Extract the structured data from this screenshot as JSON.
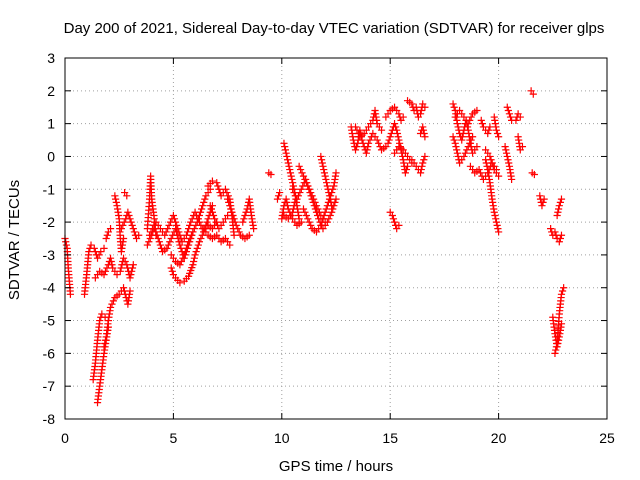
{
  "chart_data": {
    "type": "scatter",
    "title": "Day 200 of 2021, Sidereal Day-to-day VTEC variation (SDTVAR) for receiver glps",
    "xlabel": "GPS time / hours",
    "ylabel": "SDTVAR / TECUs",
    "xlim": [
      0,
      25
    ],
    "ylim": [
      -8,
      3
    ],
    "xticks": [
      0,
      5,
      10,
      15,
      20,
      25
    ],
    "yticks": [
      -8,
      -7,
      -6,
      -5,
      -4,
      -3,
      -2,
      -1,
      0,
      1,
      2,
      3
    ],
    "grid": true,
    "marker": "plus",
    "color": "#ff0000",
    "segments": [
      [
        [
          0.0,
          -2.5
        ],
        [
          0.1,
          -2.8
        ],
        [
          0.15,
          -3.4
        ],
        [
          0.2,
          -3.8
        ],
        [
          0.25,
          -4.2
        ]
      ],
      [
        [
          0.9,
          -4.2
        ],
        [
          1.0,
          -3.6
        ],
        [
          1.1,
          -2.9
        ],
        [
          1.2,
          -2.7
        ],
        [
          1.35,
          -2.8
        ],
        [
          1.5,
          -3.1
        ],
        [
          1.65,
          -2.9
        ],
        [
          1.8,
          -2.8
        ]
      ],
      [
        [
          1.3,
          -6.8
        ],
        [
          1.4,
          -6.3
        ],
        [
          1.5,
          -5.6
        ],
        [
          1.6,
          -5.0
        ],
        [
          1.7,
          -4.8
        ],
        [
          1.85,
          -4.9
        ],
        [
          2.0,
          -5.0
        ]
      ],
      [
        [
          1.5,
          -7.5
        ],
        [
          1.6,
          -7.0
        ],
        [
          1.7,
          -6.5
        ],
        [
          1.8,
          -6.0
        ],
        [
          1.9,
          -5.6
        ],
        [
          2.0,
          -5.2
        ]
      ],
      [
        [
          1.4,
          -3.7
        ],
        [
          1.6,
          -3.5
        ],
        [
          1.8,
          -3.6
        ],
        [
          2.0,
          -3.3
        ],
        [
          2.1,
          -3.1
        ],
        [
          2.2,
          -3.4
        ],
        [
          2.4,
          -3.6
        ],
        [
          2.55,
          -3.5
        ],
        [
          2.7,
          -3.1
        ],
        [
          2.85,
          -3.3
        ],
        [
          3.0,
          -3.7
        ],
        [
          3.15,
          -3.3
        ]
      ],
      [
        [
          1.8,
          -5.8
        ],
        [
          1.9,
          -5.5
        ],
        [
          2.0,
          -5.0
        ],
        [
          2.1,
          -4.6
        ],
        [
          2.3,
          -4.3
        ],
        [
          2.5,
          -4.2
        ],
        [
          2.7,
          -4.0
        ],
        [
          2.9,
          -4.5
        ],
        [
          3.0,
          -4.1
        ]
      ],
      [
        [
          1.9,
          -2.5
        ],
        [
          2.0,
          -2.3
        ],
        [
          2.1,
          -2.2
        ]
      ],
      [
        [
          2.3,
          -1.2
        ],
        [
          2.4,
          -1.5
        ],
        [
          2.5,
          -1.9
        ],
        [
          2.55,
          -2.5
        ],
        [
          2.6,
          -2.9
        ],
        [
          2.7,
          -2.5
        ]
      ],
      [
        [
          2.6,
          -2.2
        ],
        [
          2.8,
          -1.9
        ],
        [
          2.9,
          -1.7
        ],
        [
          3.0,
          -1.9
        ],
        [
          3.1,
          -2.1
        ],
        [
          3.2,
          -2.3
        ],
        [
          3.3,
          -2.5
        ],
        [
          3.4,
          -2.4
        ]
      ],
      [
        [
          2.75,
          -1.1
        ],
        [
          2.85,
          -1.2
        ]
      ],
      [
        [
          3.8,
          -2.2
        ],
        [
          3.9,
          -1.3
        ],
        [
          3.95,
          -0.6
        ],
        [
          4.0,
          -1.3
        ],
        [
          4.1,
          -1.8
        ],
        [
          4.2,
          -2.4
        ]
      ],
      [
        [
          3.8,
          -2.7
        ],
        [
          4.0,
          -2.4
        ],
        [
          4.2,
          -2.0
        ],
        [
          4.4,
          -2.2
        ],
        [
          4.6,
          -2.4
        ],
        [
          4.8,
          -2.1
        ],
        [
          5.0,
          -1.8
        ],
        [
          5.2,
          -2.2
        ],
        [
          5.4,
          -2.6
        ],
        [
          5.6,
          -2.4
        ],
        [
          5.8,
          -2.0
        ],
        [
          6.0,
          -1.7
        ],
        [
          6.2,
          -2.0
        ],
        [
          6.4,
          -2.3
        ],
        [
          6.6,
          -2.1
        ],
        [
          6.8,
          -2.2
        ],
        [
          7.0,
          -2.0
        ]
      ],
      [
        [
          3.9,
          -2.4
        ],
        [
          4.1,
          -2.1
        ],
        [
          4.3,
          -2.5
        ],
        [
          4.5,
          -2.9
        ],
        [
          4.7,
          -2.8
        ],
        [
          4.9,
          -2.5
        ],
        [
          5.1,
          -2.2
        ],
        [
          5.3,
          -2.7
        ],
        [
          5.5,
          -3.1
        ],
        [
          5.7,
          -2.7
        ],
        [
          5.9,
          -2.3
        ],
        [
          6.1,
          -2.0
        ],
        [
          6.3,
          -1.6
        ],
        [
          6.5,
          -1.2
        ],
        [
          6.7,
          -1.0
        ]
      ],
      [
        [
          4.9,
          -3.4
        ],
        [
          5.0,
          -3.6
        ],
        [
          5.1,
          -3.7
        ],
        [
          5.3,
          -3.85
        ],
        [
          5.5,
          -3.8
        ],
        [
          5.7,
          -3.65
        ],
        [
          5.9,
          -3.3
        ],
        [
          6.0,
          -3.0
        ],
        [
          6.2,
          -2.6
        ],
        [
          6.4,
          -2.3
        ],
        [
          6.6,
          -1.9
        ],
        [
          6.8,
          -1.5
        ]
      ],
      [
        [
          4.9,
          -3.0
        ],
        [
          5.1,
          -3.2
        ],
        [
          5.3,
          -3.3
        ],
        [
          5.5,
          -3.0
        ],
        [
          5.7,
          -2.6
        ],
        [
          5.9,
          -2.3
        ]
      ],
      [
        [
          6.6,
          -0.9
        ],
        [
          6.8,
          -0.75
        ],
        [
          7.0,
          -0.8
        ],
        [
          7.2,
          -1.2
        ],
        [
          7.4,
          -1.0
        ],
        [
          7.6,
          -1.3
        ],
        [
          7.7,
          -1.8
        ],
        [
          7.8,
          -2.4
        ]
      ],
      [
        [
          6.4,
          -2.2
        ],
        [
          6.6,
          -2.4
        ],
        [
          6.8,
          -2.5
        ],
        [
          7.0,
          -2.4
        ],
        [
          7.2,
          -2.6
        ],
        [
          7.4,
          -2.5
        ],
        [
          7.6,
          -2.7
        ]
      ],
      [
        [
          6.7,
          -1.5
        ],
        [
          6.9,
          -1.9
        ],
        [
          7.1,
          -2.2
        ],
        [
          7.3,
          -2.0
        ],
        [
          7.5,
          -1.8
        ]
      ],
      [
        [
          7.5,
          -1.3
        ],
        [
          7.7,
          -1.7
        ],
        [
          7.9,
          -2.1
        ],
        [
          8.1,
          -2.4
        ],
        [
          8.3,
          -2.5
        ],
        [
          8.5,
          -2.4
        ]
      ],
      [
        [
          8.2,
          -2.0
        ],
        [
          8.4,
          -1.6
        ],
        [
          8.5,
          -1.3
        ],
        [
          8.6,
          -1.8
        ],
        [
          8.7,
          -2.2
        ]
      ],
      [
        [
          9.4,
          -0.5
        ],
        [
          9.5,
          -0.55
        ]
      ],
      [
        [
          9.8,
          -1.3
        ],
        [
          9.9,
          -1.1
        ]
      ],
      [
        [
          10.0,
          -1.9
        ],
        [
          10.1,
          -1.5
        ],
        [
          10.2,
          -1.3
        ],
        [
          10.3,
          -1.6
        ],
        [
          10.5,
          -1.9
        ],
        [
          10.7,
          -2.1
        ],
        [
          10.9,
          -2.0
        ]
      ],
      [
        [
          10.1,
          -1.8
        ],
        [
          10.3,
          -1.9
        ],
        [
          10.5,
          -1.7
        ],
        [
          10.6,
          -1.4
        ]
      ],
      [
        [
          10.1,
          0.4
        ],
        [
          10.2,
          0.1
        ],
        [
          10.3,
          -0.2
        ],
        [
          10.4,
          -0.5
        ],
        [
          10.5,
          -0.8
        ],
        [
          10.6,
          -1.1
        ],
        [
          10.7,
          -1.5
        ],
        [
          10.8,
          -1.9
        ]
      ],
      [
        [
          10.5,
          -1.0
        ],
        [
          10.7,
          -1.3
        ],
        [
          10.9,
          -1.0
        ],
        [
          11.1,
          -0.7
        ],
        [
          11.3,
          -1.1
        ],
        [
          11.5,
          -1.5
        ],
        [
          11.7,
          -1.9
        ],
        [
          11.9,
          -2.2
        ],
        [
          12.1,
          -2.0
        ],
        [
          12.3,
          -1.7
        ],
        [
          12.5,
          -1.3
        ]
      ],
      [
        [
          10.8,
          -0.3
        ],
        [
          11.0,
          -0.6
        ],
        [
          11.2,
          -0.9
        ],
        [
          11.4,
          -1.2
        ],
        [
          11.6,
          -1.5
        ],
        [
          11.8,
          -1.8
        ],
        [
          12.0,
          -2.0
        ]
      ],
      [
        [
          11.0,
          -1.6
        ],
        [
          11.2,
          -1.9
        ],
        [
          11.4,
          -2.2
        ],
        [
          11.6,
          -2.3
        ],
        [
          11.8,
          -2.1
        ],
        [
          12.0,
          -1.7
        ],
        [
          12.2,
          -1.3
        ],
        [
          12.4,
          -0.9
        ],
        [
          12.5,
          -0.5
        ]
      ],
      [
        [
          11.8,
          0.0
        ],
        [
          11.9,
          -0.3
        ],
        [
          12.0,
          -0.6
        ],
        [
          12.1,
          -0.9
        ],
        [
          12.2,
          -1.2
        ],
        [
          12.3,
          -1.5
        ]
      ],
      [
        [
          13.2,
          0.9
        ],
        [
          13.3,
          0.5
        ],
        [
          13.4,
          0.2
        ],
        [
          13.5,
          0.4
        ],
        [
          13.6,
          0.8
        ],
        [
          13.7,
          0.5
        ],
        [
          13.8,
          0.3
        ],
        [
          13.9,
          0.1
        ],
        [
          14.0,
          0.4
        ],
        [
          14.2,
          0.7
        ],
        [
          14.4,
          0.5
        ],
        [
          14.6,
          0.2
        ],
        [
          14.8,
          0.3
        ]
      ],
      [
        [
          13.4,
          0.9
        ],
        [
          13.6,
          0.6
        ],
        [
          13.8,
          0.7
        ],
        [
          14.0,
          0.9
        ],
        [
          14.2,
          1.1
        ],
        [
          14.3,
          1.4
        ],
        [
          14.4,
          1.0
        ],
        [
          14.6,
          0.8
        ]
      ],
      [
        [
          14.8,
          1.2
        ],
        [
          15.0,
          1.4
        ],
        [
          15.2,
          1.5
        ],
        [
          15.4,
          1.3
        ],
        [
          15.5,
          1.1
        ],
        [
          15.6,
          1.2
        ]
      ],
      [
        [
          14.9,
          0.4
        ],
        [
          15.0,
          0.6
        ],
        [
          15.1,
          0.8
        ],
        [
          15.2,
          1.0
        ],
        [
          15.3,
          0.8
        ],
        [
          15.4,
          0.5
        ],
        [
          15.5,
          0.2
        ],
        [
          15.6,
          -0.1
        ],
        [
          15.7,
          -0.5
        ],
        [
          15.8,
          -0.3
        ]
      ],
      [
        [
          15.0,
          -1.7
        ],
        [
          15.1,
          -1.8
        ],
        [
          15.2,
          -2.0
        ],
        [
          15.3,
          -2.2
        ],
        [
          15.4,
          -2.1
        ]
      ],
      [
        [
          15.2,
          0.1
        ],
        [
          15.4,
          0.3
        ],
        [
          15.6,
          0.2
        ],
        [
          15.8,
          0.0
        ],
        [
          16.0,
          -0.2
        ]
      ],
      [
        [
          15.8,
          1.7
        ],
        [
          16.0,
          1.6
        ],
        [
          16.1,
          1.4
        ],
        [
          16.2,
          1.5
        ],
        [
          16.3,
          1.2
        ],
        [
          16.4,
          1.3
        ],
        [
          16.5,
          1.6
        ],
        [
          16.6,
          1.5
        ]
      ],
      [
        [
          16.0,
          -0.1
        ],
        [
          16.2,
          -0.3
        ],
        [
          16.4,
          -0.5
        ],
        [
          16.5,
          -0.2
        ],
        [
          16.6,
          0.0
        ]
      ],
      [
        [
          16.4,
          0.7
        ],
        [
          16.5,
          0.9
        ],
        [
          16.6,
          0.6
        ]
      ],
      [
        [
          17.9,
          1.6
        ],
        [
          18.0,
          1.4
        ],
        [
          18.1,
          1.0
        ],
        [
          18.2,
          0.7
        ],
        [
          18.3,
          0.5
        ],
        [
          18.4,
          0.8
        ],
        [
          18.5,
          1.1
        ],
        [
          18.6,
          0.8
        ],
        [
          18.7,
          0.4
        ],
        [
          18.8,
          0.1
        ],
        [
          19.0,
          0.3
        ]
      ],
      [
        [
          17.9,
          0.6
        ],
        [
          18.0,
          0.4
        ],
        [
          18.1,
          0.1
        ],
        [
          18.2,
          -0.2
        ],
        [
          18.4,
          0.0
        ],
        [
          18.6,
          0.3
        ],
        [
          18.8,
          0.6
        ]
      ],
      [
        [
          18.0,
          1.2
        ],
        [
          18.2,
          1.4
        ],
        [
          18.4,
          1.2
        ],
        [
          18.6,
          1.0
        ],
        [
          18.8,
          1.3
        ],
        [
          19.0,
          1.4
        ]
      ],
      [
        [
          18.7,
          -0.3
        ],
        [
          18.9,
          -0.5
        ],
        [
          19.1,
          -0.4
        ],
        [
          19.3,
          -0.7
        ],
        [
          19.5,
          -0.5
        ],
        [
          19.7,
          -0.2
        ],
        [
          19.9,
          -0.4
        ]
      ],
      [
        [
          19.2,
          1.1
        ],
        [
          19.3,
          0.9
        ],
        [
          19.5,
          0.7
        ],
        [
          19.6,
          0.9
        ]
      ],
      [
        [
          19.4,
          -0.1
        ],
        [
          19.5,
          -0.4
        ],
        [
          19.6,
          -0.8
        ],
        [
          19.7,
          -1.3
        ],
        [
          19.8,
          -1.7
        ],
        [
          19.9,
          -2.0
        ],
        [
          20.0,
          -2.3
        ]
      ],
      [
        [
          19.4,
          0.2
        ],
        [
          19.6,
          0.0
        ],
        [
          19.8,
          -0.4
        ],
        [
          20.0,
          -0.6
        ]
      ],
      [
        [
          19.8,
          1.2
        ],
        [
          19.9,
          0.8
        ],
        [
          20.0,
          0.6
        ]
      ],
      [
        [
          20.3,
          0.3
        ],
        [
          20.4,
          0.0
        ],
        [
          20.5,
          -0.3
        ],
        [
          20.6,
          -0.7
        ]
      ],
      [
        [
          20.4,
          1.5
        ],
        [
          20.5,
          1.3
        ],
        [
          20.6,
          1.1
        ]
      ],
      [
        [
          20.9,
          0.6
        ],
        [
          21.0,
          0.2
        ],
        [
          21.1,
          0.3
        ]
      ],
      [
        [
          20.8,
          1.1
        ],
        [
          20.9,
          1.3
        ],
        [
          21.0,
          1.2
        ]
      ],
      [
        [
          21.5,
          2.0
        ],
        [
          21.6,
          1.9
        ]
      ],
      [
        [
          21.55,
          -0.5
        ],
        [
          21.65,
          -0.55
        ]
      ],
      [
        [
          21.9,
          -1.2
        ],
        [
          22.0,
          -1.5
        ],
        [
          22.1,
          -1.3
        ]
      ],
      [
        [
          22.4,
          -2.2
        ],
        [
          22.5,
          -2.4
        ],
        [
          22.6,
          -2.3
        ],
        [
          22.7,
          -2.5
        ],
        [
          22.8,
          -2.6
        ],
        [
          22.9,
          -2.4
        ]
      ],
      [
        [
          22.7,
          -1.8
        ],
        [
          22.8,
          -1.5
        ],
        [
          22.9,
          -1.3
        ]
      ],
      [
        [
          22.5,
          -4.9
        ],
        [
          22.6,
          -5.4
        ],
        [
          22.7,
          -5.8
        ],
        [
          22.8,
          -5.5
        ],
        [
          22.9,
          -5.1
        ]
      ],
      [
        [
          22.6,
          -6.0
        ],
        [
          22.7,
          -5.7
        ],
        [
          22.8,
          -4.8
        ],
        [
          22.9,
          -4.2
        ],
        [
          23.0,
          -4.0
        ]
      ]
    ]
  }
}
